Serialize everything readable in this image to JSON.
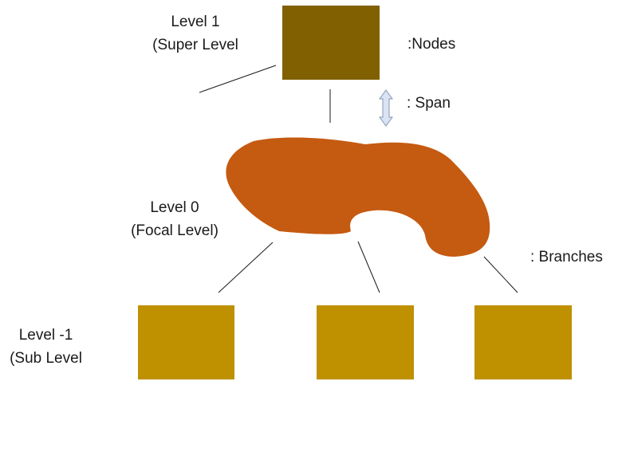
{
  "levels": {
    "super": {
      "line1": "Level 1",
      "line2": "(Super Level"
    },
    "focal": {
      "line1": "Level 0",
      "line2": "(Focal Level)"
    },
    "sub": {
      "line1": "Level -1",
      "line2": "(Sub Level"
    }
  },
  "legend": {
    "nodes": ":Nodes",
    "span": ": Span",
    "branches": ": Branches"
  },
  "colors": {
    "super_node": "#806000",
    "focal_blob": "#c55a11",
    "sub_node": "#bf9000",
    "span_arrow_fill": "#dae3f3",
    "span_arrow_stroke": "#8497b0",
    "line": "#1a1a1a"
  }
}
